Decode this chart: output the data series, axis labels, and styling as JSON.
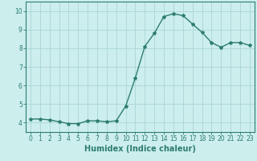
{
  "x": [
    0,
    1,
    2,
    3,
    4,
    5,
    6,
    7,
    8,
    9,
    10,
    11,
    12,
    13,
    14,
    15,
    16,
    17,
    18,
    19,
    20,
    21,
    22,
    23
  ],
  "y": [
    4.2,
    4.2,
    4.15,
    4.05,
    3.95,
    3.95,
    4.1,
    4.1,
    4.05,
    4.1,
    4.9,
    6.4,
    8.1,
    8.8,
    9.7,
    9.85,
    9.75,
    9.3,
    8.85,
    8.3,
    8.05,
    8.3,
    8.3,
    8.15
  ],
  "line_color": "#2d7d6e",
  "marker": "*",
  "marker_size": 3,
  "bg_color": "#cceeed",
  "grid_color": "#aad6d4",
  "xlabel": "Humidex (Indice chaleur)",
  "ylabel": "",
  "xlim": [
    -0.5,
    23.5
  ],
  "ylim": [
    3.5,
    10.5
  ],
  "yticks": [
    4,
    5,
    6,
    7,
    8,
    9,
    10
  ],
  "xticks": [
    0,
    1,
    2,
    3,
    4,
    5,
    6,
    7,
    8,
    9,
    10,
    11,
    12,
    13,
    14,
    15,
    16,
    17,
    18,
    19,
    20,
    21,
    22,
    23
  ],
  "tick_fontsize": 5.5,
  "xlabel_fontsize": 7,
  "axis_color": "#2d7d6e",
  "line_width": 1.0
}
